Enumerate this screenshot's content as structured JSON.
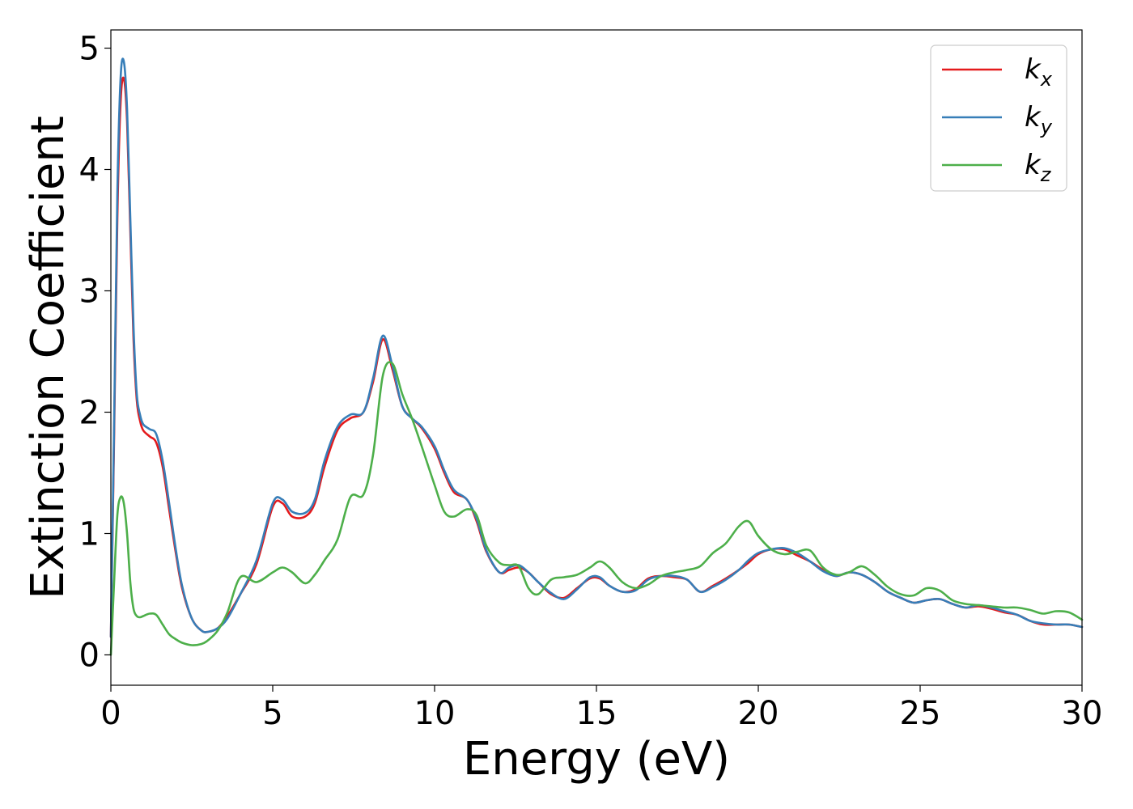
{
  "chart_data": {
    "type": "line",
    "xlabel": "Energy (eV)",
    "ylabel": "Extinction Coefficient",
    "xlim": [
      0,
      30
    ],
    "ylim": [
      -0.25,
      5.15
    ],
    "xticks": [
      0,
      5,
      10,
      15,
      20,
      25,
      30
    ],
    "yticks": [
      0,
      1,
      2,
      3,
      4,
      5
    ],
    "grid": false,
    "legend_position": "top-right",
    "series": [
      {
        "name": "k",
        "subscript": "x",
        "color": "#e41a1c",
        "x": [
          0,
          0.1,
          0.2,
          0.3,
          0.4,
          0.5,
          0.6,
          0.7,
          0.8,
          0.9,
          1.0,
          1.2,
          1.4,
          1.6,
          1.8,
          2.0,
          2.2,
          2.5,
          2.8,
          3.0,
          3.3,
          3.6,
          4.0,
          4.5,
          5.0,
          5.3,
          5.6,
          6.0,
          6.3,
          6.6,
          7.0,
          7.4,
          7.8,
          8.1,
          8.4,
          8.7,
          9.0,
          9.3,
          9.6,
          10.0,
          10.3,
          10.6,
          11.0,
          11.3,
          11.6,
          12.0,
          12.3,
          12.6,
          12.9,
          13.2,
          13.6,
          14.0,
          14.4,
          14.8,
          15.1,
          15.4,
          15.8,
          16.2,
          16.6,
          17.0,
          17.4,
          17.8,
          18.2,
          18.6,
          19.0,
          19.4,
          19.7,
          20.0,
          20.4,
          20.8,
          21.2,
          21.6,
          22.0,
          22.4,
          22.8,
          23.2,
          23.6,
          24.0,
          24.4,
          24.8,
          25.2,
          25.6,
          26.0,
          26.4,
          26.8,
          27.2,
          27.6,
          28.0,
          28.4,
          28.8,
          29.2,
          29.6,
          30.0
        ],
        "y": [
          0.15,
          1.8,
          3.6,
          4.55,
          4.75,
          4.4,
          3.5,
          2.6,
          2.1,
          1.93,
          1.85,
          1.8,
          1.75,
          1.55,
          1.2,
          0.85,
          0.55,
          0.3,
          0.2,
          0.19,
          0.22,
          0.32,
          0.5,
          0.75,
          1.22,
          1.25,
          1.14,
          1.14,
          1.25,
          1.55,
          1.85,
          1.95,
          2.0,
          2.25,
          2.6,
          2.35,
          2.05,
          1.95,
          1.87,
          1.7,
          1.5,
          1.34,
          1.28,
          1.1,
          0.85,
          0.68,
          0.7,
          0.72,
          0.68,
          0.6,
          0.5,
          0.47,
          0.55,
          0.63,
          0.63,
          0.57,
          0.52,
          0.54,
          0.63,
          0.65,
          0.64,
          0.62,
          0.52,
          0.57,
          0.63,
          0.7,
          0.76,
          0.83,
          0.87,
          0.87,
          0.82,
          0.77,
          0.7,
          0.65,
          0.68,
          0.66,
          0.6,
          0.52,
          0.47,
          0.43,
          0.45,
          0.46,
          0.42,
          0.39,
          0.4,
          0.38,
          0.35,
          0.33,
          0.28,
          0.25,
          0.25,
          0.25,
          0.23
        ]
      },
      {
        "name": "k",
        "subscript": "y",
        "color": "#377eb8",
        "x": [
          0,
          0.1,
          0.2,
          0.3,
          0.4,
          0.5,
          0.6,
          0.7,
          0.8,
          0.9,
          1.0,
          1.2,
          1.4,
          1.6,
          1.8,
          2.0,
          2.2,
          2.5,
          2.8,
          3.0,
          3.3,
          3.6,
          4.0,
          4.5,
          5.0,
          5.3,
          5.6,
          6.0,
          6.3,
          6.6,
          7.0,
          7.4,
          7.8,
          8.1,
          8.4,
          8.7,
          9.0,
          9.3,
          9.6,
          10.0,
          10.3,
          10.6,
          11.0,
          11.3,
          11.6,
          12.0,
          12.3,
          12.6,
          12.9,
          13.2,
          13.6,
          14.0,
          14.4,
          14.8,
          15.1,
          15.4,
          15.8,
          16.2,
          16.6,
          17.0,
          17.4,
          17.8,
          18.2,
          18.6,
          19.0,
          19.4,
          19.7,
          20.0,
          20.4,
          20.8,
          21.2,
          21.6,
          22.0,
          22.4,
          22.8,
          23.2,
          23.6,
          24.0,
          24.4,
          24.8,
          25.2,
          25.6,
          26.0,
          26.4,
          26.8,
          27.2,
          27.6,
          28.0,
          28.4,
          28.8,
          29.2,
          29.6,
          30.0
        ],
        "y": [
          0.15,
          1.9,
          3.8,
          4.75,
          4.89,
          4.5,
          3.6,
          2.7,
          2.15,
          1.98,
          1.9,
          1.86,
          1.82,
          1.6,
          1.25,
          0.88,
          0.57,
          0.3,
          0.2,
          0.19,
          0.22,
          0.3,
          0.5,
          0.78,
          1.25,
          1.28,
          1.18,
          1.17,
          1.28,
          1.6,
          1.88,
          1.98,
          2.0,
          2.28,
          2.63,
          2.38,
          2.05,
          1.95,
          1.88,
          1.72,
          1.52,
          1.36,
          1.28,
          1.12,
          0.86,
          0.68,
          0.72,
          0.74,
          0.68,
          0.6,
          0.51,
          0.46,
          0.54,
          0.64,
          0.64,
          0.57,
          0.52,
          0.53,
          0.62,
          0.65,
          0.65,
          0.62,
          0.52,
          0.56,
          0.62,
          0.7,
          0.78,
          0.84,
          0.87,
          0.88,
          0.84,
          0.77,
          0.69,
          0.65,
          0.68,
          0.66,
          0.6,
          0.52,
          0.47,
          0.43,
          0.45,
          0.46,
          0.42,
          0.39,
          0.41,
          0.39,
          0.36,
          0.33,
          0.28,
          0.26,
          0.25,
          0.25,
          0.23
        ]
      },
      {
        "name": "k",
        "subscript": "z",
        "color": "#4daf4a",
        "x": [
          0,
          0.1,
          0.2,
          0.3,
          0.4,
          0.5,
          0.6,
          0.7,
          0.8,
          0.9,
          1.0,
          1.2,
          1.4,
          1.6,
          1.8,
          2.0,
          2.2,
          2.5,
          2.8,
          3.0,
          3.3,
          3.6,
          4.0,
          4.5,
          5.0,
          5.3,
          5.6,
          6.0,
          6.3,
          6.6,
          7.0,
          7.4,
          7.8,
          8.1,
          8.4,
          8.7,
          9.0,
          9.3,
          9.6,
          10.0,
          10.3,
          10.6,
          11.0,
          11.3,
          11.6,
          12.0,
          12.3,
          12.6,
          12.9,
          13.2,
          13.6,
          14.0,
          14.4,
          14.8,
          15.1,
          15.4,
          15.8,
          16.2,
          16.6,
          17.0,
          17.4,
          17.8,
          18.2,
          18.6,
          19.0,
          19.4,
          19.7,
          20.0,
          20.4,
          20.8,
          21.2,
          21.6,
          22.0,
          22.4,
          22.8,
          23.2,
          23.6,
          24.0,
          24.4,
          24.8,
          25.2,
          25.6,
          26.0,
          26.4,
          26.8,
          27.2,
          27.6,
          28.0,
          28.4,
          28.8,
          29.2,
          29.6,
          30.0
        ],
        "y": [
          0.0,
          0.6,
          1.15,
          1.3,
          1.25,
          1.0,
          0.6,
          0.38,
          0.32,
          0.31,
          0.32,
          0.34,
          0.33,
          0.25,
          0.17,
          0.13,
          0.1,
          0.08,
          0.09,
          0.12,
          0.2,
          0.35,
          0.64,
          0.6,
          0.68,
          0.72,
          0.68,
          0.59,
          0.66,
          0.78,
          0.95,
          1.3,
          1.32,
          1.65,
          2.3,
          2.4,
          2.15,
          1.95,
          1.72,
          1.4,
          1.18,
          1.14,
          1.2,
          1.15,
          0.9,
          0.76,
          0.74,
          0.73,
          0.55,
          0.5,
          0.62,
          0.64,
          0.66,
          0.72,
          0.77,
          0.72,
          0.6,
          0.55,
          0.58,
          0.65,
          0.68,
          0.7,
          0.73,
          0.84,
          0.92,
          1.06,
          1.1,
          0.98,
          0.87,
          0.83,
          0.85,
          0.86,
          0.72,
          0.66,
          0.68,
          0.73,
          0.66,
          0.56,
          0.5,
          0.49,
          0.55,
          0.53,
          0.45,
          0.42,
          0.41,
          0.4,
          0.39,
          0.39,
          0.37,
          0.34,
          0.36,
          0.35,
          0.29
        ]
      }
    ]
  }
}
